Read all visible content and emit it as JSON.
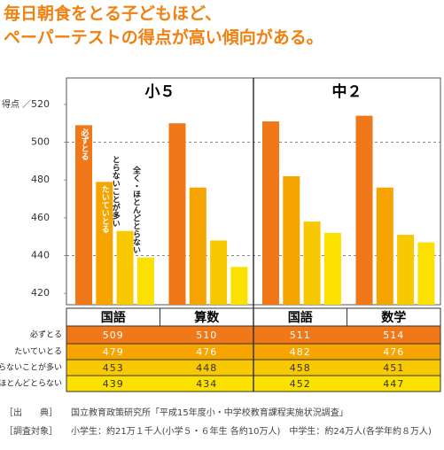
{
  "chart_data": {
    "type": "grouped_bar",
    "title": [
      "毎日朝食をとる子どもほど、",
      "ペーパーテストの得点が高い傾向がある。"
    ],
    "y_label": "得点 ／",
    "groups": [
      {
        "name": "小５",
        "categories": [
          "国語",
          "算数"
        ]
      },
      {
        "name": "中２",
        "categories": [
          "国語",
          "数学"
        ]
      }
    ],
    "series": [
      {
        "name": "必ずとる",
        "color": "#f07818",
        "values": [
          509,
          510,
          511,
          514
        ]
      },
      {
        "name": "たいていとる",
        "color": "#f5a400",
        "values": [
          479,
          476,
          482,
          476
        ]
      },
      {
        "name": "とらないことが多い",
        "color": "#f8c800",
        "values": [
          453,
          448,
          458,
          451
        ]
      },
      {
        "name": "全く・ほとんどとらない",
        "color": "#fbe000",
        "values": [
          439,
          434,
          452,
          447
        ]
      }
    ],
    "ylim": [
      414,
      534
    ],
    "yticks": [
      420,
      440,
      460,
      480,
      500,
      520
    ],
    "gridlines": [
      440,
      500
    ]
  },
  "footnotes": [
    {
      "label": "［出　　典］",
      "text": "国立教育政策研究所「平成15年度小・中学校教育課程実施状況調査」"
    },
    {
      "label": "［調査対象］",
      "text": "小学生：約21万１千人(小学５・６年生 各約10万人)　中学生：約24万人(各学年約８万人)"
    }
  ]
}
